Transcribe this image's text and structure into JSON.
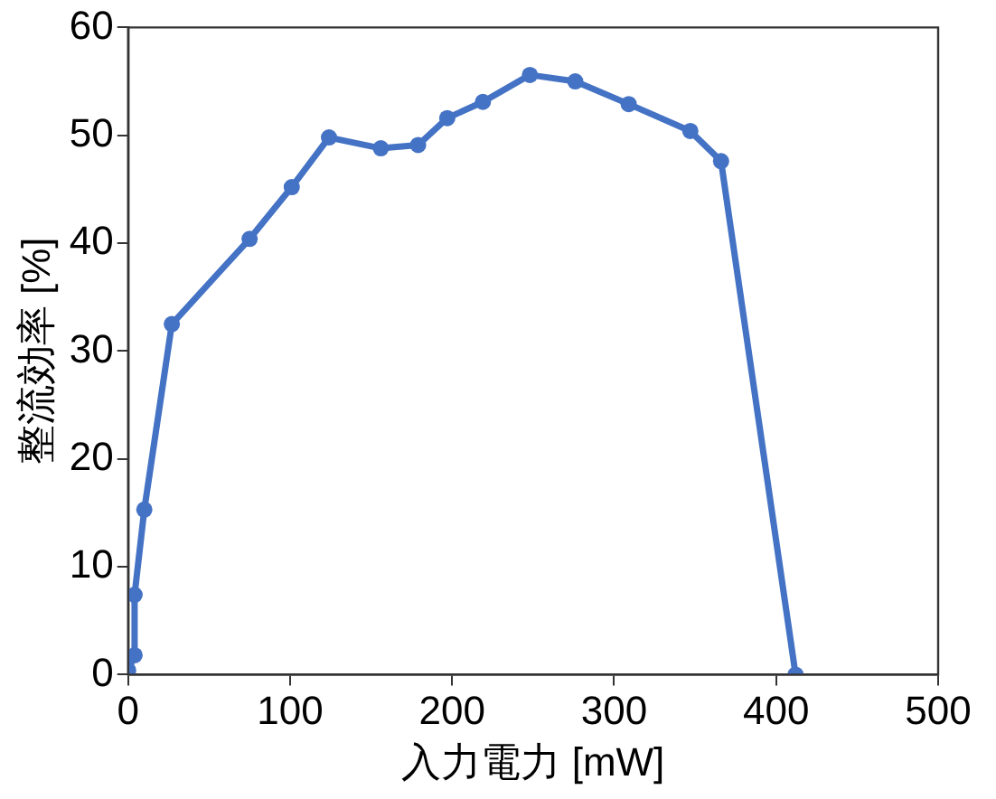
{
  "chart_data": {
    "type": "line",
    "xlabel": "入力電力 [mW]",
    "ylabel": "整流効率 [%]",
    "x": [
      0,
      4,
      4,
      10,
      27,
      75,
      101,
      124,
      156,
      179,
      197,
      219,
      248,
      276,
      309,
      347,
      366,
      412
    ],
    "series": [
      {
        "color": "#4472c4",
        "values": [
          0.4,
          1.8,
          7.4,
          15.3,
          32.5,
          40.4,
          45.2,
          49.8,
          48.8,
          49.1,
          51.6,
          53.1,
          55.6,
          55.0,
          52.9,
          50.4,
          47.6,
          0
        ]
      }
    ],
    "xlim": [
      0,
      500
    ],
    "xticks": [
      0,
      100,
      200,
      300,
      400,
      500
    ],
    "ylim": [
      0,
      60
    ],
    "yticks": [
      0,
      10,
      20,
      30,
      40,
      50,
      60
    ],
    "grid": false,
    "legend": false,
    "marker": "circle",
    "line_style": "solid"
  }
}
